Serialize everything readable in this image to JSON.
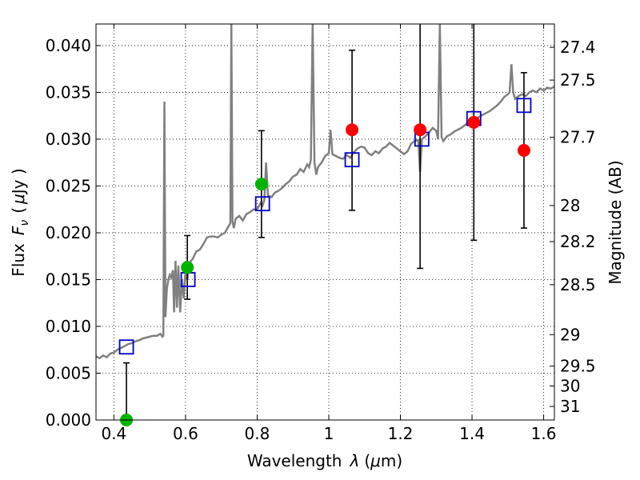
{
  "chart_data": {
    "type": "scatter",
    "xlabel_main": "Wavelength",
    "xlabel_symbol": "λ",
    "xlabel_unit_open": "(",
    "xlabel_unit_mu": "μ",
    "xlabel_unit_rest": "m)",
    "ylabel_main": "Flux",
    "ylabel_symbol": "F",
    "ylabel_sub": "ν",
    "ylabel_unit_open": "(",
    "ylabel_unit_mu": "μ",
    "ylabel_unit_rest": "Jy )",
    "y2label": "Magnitude (AB)",
    "xlim": [
      0.35,
      1.63
    ],
    "ylim": [
      0.0,
      0.0423
    ],
    "xticks": [
      {
        "value": 0.4,
        "label": "0.4"
      },
      {
        "value": 0.6,
        "label": "0.6"
      },
      {
        "value": 0.8,
        "label": "0.8"
      },
      {
        "value": 1.0,
        "label": "1"
      },
      {
        "value": 1.2,
        "label": "1.2"
      },
      {
        "value": 1.4,
        "label": "1.4"
      },
      {
        "value": 1.6,
        "label": "1.6"
      }
    ],
    "yticks": [
      {
        "value": 0.0,
        "label": "0.000"
      },
      {
        "value": 0.005,
        "label": "0.005"
      },
      {
        "value": 0.01,
        "label": "0.010"
      },
      {
        "value": 0.015,
        "label": "0.015"
      },
      {
        "value": 0.02,
        "label": "0.020"
      },
      {
        "value": 0.025,
        "label": "0.025"
      },
      {
        "value": 0.03,
        "label": "0.030"
      },
      {
        "value": 0.035,
        "label": "0.035"
      },
      {
        "value": 0.04,
        "label": "0.040"
      }
    ],
    "y2ticks": [
      {
        "mag": 27.4,
        "label": "27.4"
      },
      {
        "mag": 27.5,
        "label": "27.5"
      },
      {
        "mag": 27.7,
        "label": "27.7"
      },
      {
        "mag": 28,
        "label": "28"
      },
      {
        "mag": 28.2,
        "label": "28.2"
      },
      {
        "mag": 28.5,
        "label": "28.5"
      },
      {
        "mag": 29,
        "label": "29"
      },
      {
        "mag": 29.5,
        "label": "29.5"
      },
      {
        "mag": 30,
        "label": "30"
      },
      {
        "mag": 31,
        "label": "31"
      }
    ],
    "grid": true,
    "colors": {
      "template": "#808080",
      "model": "#0000cc",
      "green": "#00b300",
      "red": "#ff0000",
      "errorbar": "#000000"
    },
    "template_spectrum": [
      [
        0.35,
        0.0068
      ],
      [
        0.36,
        0.0066
      ],
      [
        0.37,
        0.0069
      ],
      [
        0.38,
        0.0067
      ],
      [
        0.39,
        0.0071
      ],
      [
        0.4,
        0.0072
      ],
      [
        0.41,
        0.0075
      ],
      [
        0.42,
        0.0077
      ],
      [
        0.43,
        0.0079
      ],
      [
        0.44,
        0.0081
      ],
      [
        0.45,
        0.0082
      ],
      [
        0.46,
        0.0084
      ],
      [
        0.47,
        0.0085
      ],
      [
        0.48,
        0.0087
      ],
      [
        0.49,
        0.0088
      ],
      [
        0.5,
        0.0089
      ],
      [
        0.51,
        0.009
      ],
      [
        0.52,
        0.009
      ],
      [
        0.525,
        0.0091
      ],
      [
        0.53,
        0.0092
      ],
      [
        0.535,
        0.0089
      ],
      [
        0.538,
        0.009
      ],
      [
        0.541,
        0.034
      ],
      [
        0.544,
        0.011
      ],
      [
        0.548,
        0.014
      ],
      [
        0.552,
        0.015
      ],
      [
        0.556,
        0.0155
      ],
      [
        0.56,
        0.0152
      ],
      [
        0.565,
        0.016
      ],
      [
        0.568,
        0.0115
      ],
      [
        0.572,
        0.017
      ],
      [
        0.576,
        0.012
      ],
      [
        0.58,
        0.0165
      ],
      [
        0.585,
        0.0115
      ],
      [
        0.59,
        0.015
      ],
      [
        0.595,
        0.013
      ],
      [
        0.6,
        0.016
      ],
      [
        0.605,
        0.015
      ],
      [
        0.61,
        0.0165
      ],
      [
        0.615,
        0.017
      ],
      [
        0.62,
        0.0172
      ],
      [
        0.63,
        0.018
      ],
      [
        0.64,
        0.0182
      ],
      [
        0.65,
        0.0188
      ],
      [
        0.66,
        0.0195
      ],
      [
        0.67,
        0.0196
      ],
      [
        0.68,
        0.0196
      ],
      [
        0.69,
        0.0195
      ],
      [
        0.7,
        0.0198
      ],
      [
        0.71,
        0.02
      ],
      [
        0.72,
        0.0207
      ],
      [
        0.725,
        0.021
      ],
      [
        0.728,
        0.0423
      ],
      [
        0.731,
        0.0212
      ],
      [
        0.735,
        0.0205
      ],
      [
        0.74,
        0.0215
      ],
      [
        0.75,
        0.0218
      ],
      [
        0.76,
        0.0213
      ],
      [
        0.77,
        0.022
      ],
      [
        0.78,
        0.0222
      ],
      [
        0.79,
        0.0225
      ],
      [
        0.8,
        0.0225
      ],
      [
        0.81,
        0.0232
      ],
      [
        0.815,
        0.0229
      ],
      [
        0.82,
        0.0235
      ],
      [
        0.825,
        0.0275
      ],
      [
        0.83,
        0.024
      ],
      [
        0.84,
        0.0238
      ],
      [
        0.85,
        0.0243
      ],
      [
        0.86,
        0.0245
      ],
      [
        0.87,
        0.0248
      ],
      [
        0.88,
        0.0252
      ],
      [
        0.89,
        0.0255
      ],
      [
        0.9,
        0.026
      ],
      [
        0.91,
        0.0262
      ],
      [
        0.92,
        0.0268
      ],
      [
        0.93,
        0.0265
      ],
      [
        0.94,
        0.0273
      ],
      [
        0.945,
        0.027
      ],
      [
        0.95,
        0.0278
      ],
      [
        0.955,
        0.0423
      ],
      [
        0.96,
        0.0275
      ],
      [
        0.965,
        0.0262
      ],
      [
        0.97,
        0.027
      ],
      [
        0.98,
        0.0275
      ],
      [
        0.99,
        0.0282
      ],
      [
        1.0,
        0.0285
      ],
      [
        1.005,
        0.031
      ],
      [
        1.01,
        0.0284
      ],
      [
        1.02,
        0.0282
      ],
      [
        1.03,
        0.028
      ],
      [
        1.04,
        0.0279
      ],
      [
        1.05,
        0.0283
      ],
      [
        1.06,
        0.028
      ],
      [
        1.07,
        0.0286
      ],
      [
        1.08,
        0.029
      ],
      [
        1.09,
        0.0292
      ],
      [
        1.1,
        0.0291
      ],
      [
        1.11,
        0.0285
      ],
      [
        1.12,
        0.0283
      ],
      [
        1.13,
        0.0287
      ],
      [
        1.14,
        0.0285
      ],
      [
        1.15,
        0.029
      ],
      [
        1.16,
        0.0292
      ],
      [
        1.17,
        0.0296
      ],
      [
        1.18,
        0.0293
      ],
      [
        1.19,
        0.029
      ],
      [
        1.2,
        0.0287
      ],
      [
        1.21,
        0.0284
      ],
      [
        1.22,
        0.0287
      ],
      [
        1.23,
        0.0295
      ],
      [
        1.24,
        0.0298
      ],
      [
        1.25,
        0.0299
      ],
      [
        1.255,
        0.0265
      ],
      [
        1.26,
        0.03
      ],
      [
        1.27,
        0.0303
      ],
      [
        1.28,
        0.0307
      ],
      [
        1.29,
        0.0312
      ],
      [
        1.3,
        0.0309
      ],
      [
        1.305,
        0.03
      ],
      [
        1.31,
        0.0423
      ],
      [
        1.315,
        0.0302
      ],
      [
        1.32,
        0.0298
      ],
      [
        1.33,
        0.0303
      ],
      [
        1.34,
        0.0305
      ],
      [
        1.35,
        0.0308
      ],
      [
        1.36,
        0.031
      ],
      [
        1.37,
        0.0312
      ],
      [
        1.38,
        0.0315
      ],
      [
        1.39,
        0.0318
      ],
      [
        1.4,
        0.032
      ],
      [
        1.41,
        0.0321
      ],
      [
        1.42,
        0.0324
      ],
      [
        1.43,
        0.0326
      ],
      [
        1.44,
        0.0328
      ],
      [
        1.45,
        0.033
      ],
      [
        1.46,
        0.0333
      ],
      [
        1.47,
        0.0336
      ],
      [
        1.48,
        0.034
      ],
      [
        1.49,
        0.0345
      ],
      [
        1.5,
        0.0348
      ],
      [
        1.505,
        0.035
      ],
      [
        1.51,
        0.038
      ],
      [
        1.515,
        0.035
      ],
      [
        1.52,
        0.0343
      ],
      [
        1.53,
        0.0346
      ],
      [
        1.54,
        0.0348
      ],
      [
        1.55,
        0.0346
      ],
      [
        1.56,
        0.035
      ],
      [
        1.57,
        0.0352
      ],
      [
        1.58,
        0.035
      ],
      [
        1.59,
        0.0354
      ],
      [
        1.6,
        0.0352
      ],
      [
        1.61,
        0.0355
      ],
      [
        1.62,
        0.0354
      ],
      [
        1.63,
        0.0356
      ]
    ],
    "model_points": [
      {
        "x": 0.435,
        "y": 0.0078
      },
      {
        "x": 0.607,
        "y": 0.015
      },
      {
        "x": 0.815,
        "y": 0.0231
      },
      {
        "x": 1.065,
        "y": 0.0278
      },
      {
        "x": 1.26,
        "y": 0.03
      },
      {
        "x": 1.405,
        "y": 0.0322
      },
      {
        "x": 1.545,
        "y": 0.0336
      }
    ],
    "observed_points": [
      {
        "x": 0.435,
        "y": 0.0,
        "yerr_low": 0.0,
        "yerr_high": 0.0061,
        "color": "green"
      },
      {
        "x": 0.605,
        "y": 0.0163,
        "yerr_low": 0.0129,
        "yerr_high": 0.0197,
        "color": "green"
      },
      {
        "x": 0.812,
        "y": 0.0252,
        "yerr_low": 0.0195,
        "yerr_high": 0.0309,
        "color": "green"
      },
      {
        "x": 1.065,
        "y": 0.031,
        "yerr_low": 0.0224,
        "yerr_high": 0.0395,
        "color": "red"
      },
      {
        "x": 1.255,
        "y": 0.031,
        "yerr_low": 0.0162,
        "yerr_high": 0.0423,
        "color": "red"
      },
      {
        "x": 1.405,
        "y": 0.0318,
        "yerr_low": 0.0192,
        "yerr_high": 0.0423,
        "color": "red"
      },
      {
        "x": 1.545,
        "y": 0.0288,
        "yerr_low": 0.0205,
        "yerr_high": 0.0371,
        "color": "red"
      }
    ]
  }
}
